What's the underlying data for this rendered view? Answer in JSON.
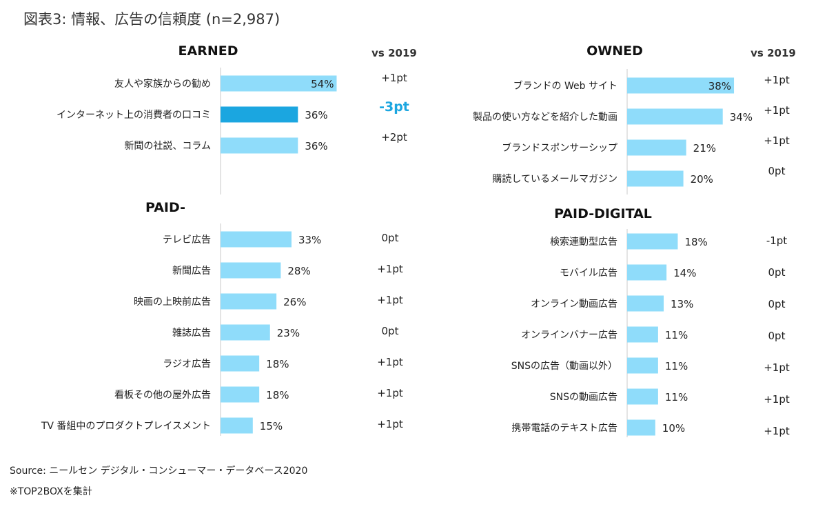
{
  "figure_title": "図表3: 情報、広告の信頼度 (n=2,987)",
  "footnotes": [
    "Source: ニールセン デジタル・コンシューマー・データベース2020",
    "※TOP2BOXを集計"
  ],
  "colors": {
    "bar": "#8fdcfa",
    "highlight_bar": "#1ba6e0",
    "highlight_delta": "#1ba6e0",
    "axis": "#c8c8c8"
  },
  "chart_data": [
    {
      "type": "bar",
      "orientation": "horizontal",
      "title": "EARNED",
      "change_header": "vs 2019",
      "categories": [
        "友人や家族からの勧め",
        "インターネット上の消費者の口コミ",
        "新聞の社説、コラム"
      ],
      "values": [
        54,
        36,
        36
      ],
      "value_labels": [
        "54%",
        "36%",
        "36%"
      ],
      "changes": [
        "+1pt",
        "-3pt",
        "+2pt"
      ],
      "highlight_index": 1,
      "unit": "%"
    },
    {
      "type": "bar",
      "orientation": "horizontal",
      "title": "OWNED",
      "change_header": "vs 2019",
      "categories": [
        "ブランドの Web サイト",
        "製品の使い方などを紹介した動画",
        "ブランドスポンサーシップ",
        "購読しているメールマガジン"
      ],
      "values": [
        38,
        34,
        21,
        20
      ],
      "value_labels": [
        "38%",
        "34%",
        "21%",
        "20%"
      ],
      "changes": [
        "+1pt",
        "+1pt",
        "+1pt",
        "0pt"
      ],
      "unit": "%"
    },
    {
      "type": "bar",
      "orientation": "horizontal",
      "title": "PAID-",
      "categories": [
        "テレビ広告",
        "新聞広告",
        "映画の上映前広告",
        "雑誌広告",
        "ラジオ広告",
        "看板その他の屋外広告",
        "TV 番組中のプロダクトプレイスメント"
      ],
      "values": [
        33,
        28,
        26,
        23,
        18,
        18,
        15
      ],
      "value_labels": [
        "33%",
        "28%",
        "26%",
        "23%",
        "18%",
        "18%",
        "15%"
      ],
      "changes": [
        "0pt",
        "+1pt",
        "+1pt",
        "0pt",
        "+1pt",
        "+1pt",
        "+1pt"
      ],
      "unit": "%"
    },
    {
      "type": "bar",
      "orientation": "horizontal",
      "title": "PAID-DIGITAL",
      "categories": [
        "検索連動型広告",
        "モバイル広告",
        "オンライン動画広告",
        "オンラインバナー広告",
        "SNSの広告（動画以外）",
        "SNSの動画広告",
        "携帯電話のテキスト広告"
      ],
      "values": [
        18,
        14,
        13,
        11,
        11,
        11,
        10
      ],
      "value_labels": [
        "18%",
        "14%",
        "13%",
        "11%",
        "11%",
        "11%",
        "10%"
      ],
      "changes": [
        "-1pt",
        "0pt",
        "0pt",
        "0pt",
        "+1pt",
        "+1pt",
        "+1pt"
      ],
      "unit": "%"
    }
  ]
}
